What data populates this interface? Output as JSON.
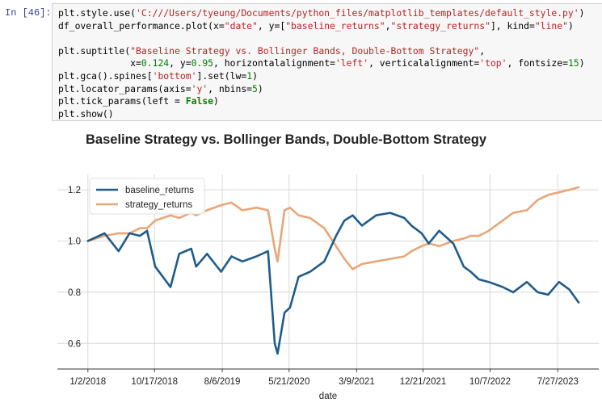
{
  "cell": {
    "prompt": "In [46]:",
    "lines": [
      [
        [
          "t",
          "plt.style.use("
        ],
        [
          "s",
          "'C:///Users/tyeung/Documents/python_files/matplotlib_templates/default_style.py'"
        ],
        [
          "t",
          ")"
        ]
      ],
      [
        [
          "t",
          "df_overall_performance.plot(x="
        ],
        [
          "s",
          "\"date\""
        ],
        [
          "t",
          ", y=["
        ],
        [
          "s",
          "\"baseline_returns\""
        ],
        [
          "t",
          ","
        ],
        [
          "s",
          "\"strategy_returns\""
        ],
        [
          "t",
          "], kind="
        ],
        [
          "s",
          "\"line\""
        ],
        [
          "t",
          ")"
        ]
      ],
      [],
      [
        [
          "t",
          "plt.suptitle("
        ],
        [
          "s",
          "\"Baseline Strategy vs. Bollinger Bands, Double-Bottom Strategy\""
        ],
        [
          "t",
          ","
        ]
      ],
      [
        [
          "t",
          "             x="
        ],
        [
          "n",
          "0.124"
        ],
        [
          "t",
          ", y="
        ],
        [
          "n",
          "0.95"
        ],
        [
          "t",
          ", horizontalalignment="
        ],
        [
          "s",
          "'left'"
        ],
        [
          "t",
          ", verticalalignment="
        ],
        [
          "s",
          "'top'"
        ],
        [
          "t",
          ", fontsize="
        ],
        [
          "n",
          "15"
        ],
        [
          "t",
          ")"
        ]
      ],
      [
        [
          "t",
          "plt.gca().spines["
        ],
        [
          "s",
          "'bottom'"
        ],
        [
          "t",
          "].set(lw="
        ],
        [
          "n",
          "1"
        ],
        [
          "t",
          ")"
        ]
      ],
      [
        [
          "t",
          "plt.locator_params(axis="
        ],
        [
          "s",
          "'y'"
        ],
        [
          "t",
          ", nbins="
        ],
        [
          "n",
          "5"
        ],
        [
          "t",
          ")"
        ]
      ],
      [
        [
          "t",
          "plt.tick_params(left = "
        ],
        [
          "k",
          "False"
        ],
        [
          "t",
          ")"
        ]
      ],
      [
        [
          "t",
          "plt.show()"
        ]
      ]
    ]
  },
  "chart_data": {
    "type": "line",
    "title": "Baseline Strategy vs. Bollinger Bands, Double-Bottom Strategy",
    "xlabel": "date",
    "ylabel": "",
    "x_ticks": [
      "1/2/2018",
      "10/17/2018",
      "8/6/2019",
      "5/21/2020",
      "3/9/2021",
      "12/21/2021",
      "10/7/2022",
      "7/27/2023"
    ],
    "y_ticks": [
      "0.6",
      "0.8",
      "1.0",
      "1.2"
    ],
    "xlim": [
      "2017-08-23",
      "2024-01-20"
    ],
    "ylim": [
      0.5,
      1.26
    ],
    "grid": true,
    "legend": "upper-left",
    "x": [
      "2018-01-02",
      "2018-03-15",
      "2018-05-15",
      "2018-07-01",
      "2018-08-15",
      "2018-09-15",
      "2018-10-20",
      "2018-12-25",
      "2019-02-01",
      "2019-03-25",
      "2019-04-15",
      "2019-06-01",
      "2019-08-01",
      "2019-09-15",
      "2019-11-01",
      "2020-01-01",
      "2020-02-20",
      "2020-03-20",
      "2020-04-01",
      "2020-05-01",
      "2020-05-25",
      "2020-07-01",
      "2020-08-20",
      "2020-10-20",
      "2020-12-10",
      "2021-01-15",
      "2021-02-20",
      "2021-04-01",
      "2021-06-01",
      "2021-08-01",
      "2021-10-01",
      "2021-11-01",
      "2021-12-15",
      "2022-01-15",
      "2022-03-01",
      "2022-05-01",
      "2022-06-15",
      "2022-07-15",
      "2022-08-20",
      "2022-10-01",
      "2022-12-01",
      "2023-01-15",
      "2023-03-15",
      "2023-05-01",
      "2023-06-15",
      "2023-08-01",
      "2023-09-15",
      "2023-10-25"
    ],
    "series": [
      {
        "name": "baseline_returns",
        "color": "#1f5c8b",
        "values": [
          1.0,
          1.03,
          0.96,
          1.03,
          1.02,
          1.04,
          0.9,
          0.82,
          0.95,
          0.97,
          0.9,
          0.95,
          0.88,
          0.94,
          0.92,
          0.94,
          0.96,
          0.6,
          0.56,
          0.72,
          0.74,
          0.86,
          0.88,
          0.92,
          1.02,
          1.08,
          1.1,
          1.06,
          1.1,
          1.11,
          1.09,
          1.06,
          1.03,
          0.99,
          1.04,
          0.99,
          0.9,
          0.88,
          0.85,
          0.84,
          0.82,
          0.8,
          0.84,
          0.8,
          0.79,
          0.84,
          0.81,
          0.76
        ]
      },
      {
        "name": "strategy_returns",
        "color": "#e8a678",
        "values": [
          1.0,
          1.02,
          1.03,
          1.03,
          1.05,
          1.05,
          1.08,
          1.1,
          1.09,
          1.11,
          1.1,
          1.12,
          1.14,
          1.15,
          1.12,
          1.13,
          1.12,
          0.97,
          0.92,
          1.12,
          1.13,
          1.1,
          1.09,
          1.05,
          0.98,
          0.93,
          0.89,
          0.91,
          0.92,
          0.93,
          0.94,
          0.96,
          0.98,
          0.99,
          0.98,
          1.0,
          1.01,
          1.02,
          1.02,
          1.04,
          1.08,
          1.11,
          1.12,
          1.16,
          1.18,
          1.19,
          1.2,
          1.21
        ]
      }
    ]
  }
}
